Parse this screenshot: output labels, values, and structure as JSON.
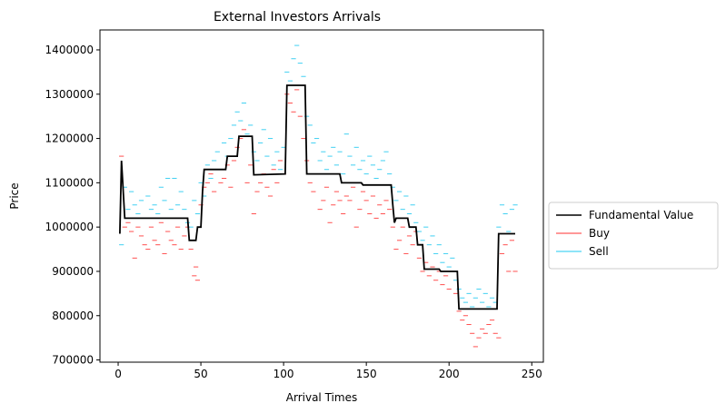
{
  "chart_data": {
    "type": "line",
    "title": "External Investors Arrivals",
    "xlabel": "Arrival Times",
    "ylabel": "Price",
    "xlim": [
      -11,
      257
    ],
    "ylim": [
      695000,
      1445000
    ],
    "xticks": [
      0,
      50,
      100,
      150,
      200,
      250
    ],
    "yticks": [
      700000,
      800000,
      900000,
      1000000,
      1100000,
      1200000,
      1300000,
      1400000
    ],
    "grid": false,
    "legend_position": "outside-right",
    "colors": {
      "fundamental": "#000000",
      "buy": "#ff3030",
      "sell": "#1ec8f0"
    },
    "fundamental_value": {
      "name": "Fundamental Value",
      "x": [
        1,
        2,
        4,
        42,
        43,
        47,
        48,
        50,
        51,
        52,
        65,
        66,
        72,
        73,
        81,
        82,
        101,
        102,
        113,
        114,
        134,
        135,
        147,
        148,
        165,
        166,
        167,
        168,
        175,
        176,
        180,
        181,
        184,
        185,
        194,
        195,
        205,
        206,
        229,
        230,
        240
      ],
      "y": [
        985000,
        1150000,
        1020000,
        1020000,
        970000,
        970000,
        1000000,
        1000000,
        1080000,
        1130000,
        1130000,
        1160000,
        1160000,
        1205000,
        1205000,
        1118000,
        1120000,
        1320000,
        1320000,
        1120000,
        1120000,
        1100000,
        1100000,
        1095000,
        1095000,
        1050000,
        1010000,
        1020000,
        1020000,
        1000000,
        1000000,
        960000,
        960000,
        905000,
        905000,
        900000,
        900000,
        815000,
        815000,
        985000,
        985000
      ]
    },
    "buy_orders": {
      "name": "Buy",
      "points": [
        [
          2,
          1160000
        ],
        [
          4,
          1000000
        ],
        [
          6,
          1010000
        ],
        [
          8,
          990000
        ],
        [
          10,
          930000
        ],
        [
          12,
          1000000
        ],
        [
          14,
          980000
        ],
        [
          16,
          960000
        ],
        [
          18,
          950000
        ],
        [
          20,
          1000000
        ],
        [
          22,
          970000
        ],
        [
          24,
          960000
        ],
        [
          26,
          1010000
        ],
        [
          28,
          940000
        ],
        [
          30,
          990000
        ],
        [
          32,
          970000
        ],
        [
          34,
          960000
        ],
        [
          36,
          1000000
        ],
        [
          38,
          950000
        ],
        [
          40,
          980000
        ],
        [
          42,
          1000000
        ],
        [
          44,
          950000
        ],
        [
          46,
          890000
        ],
        [
          47,
          910000
        ],
        [
          48,
          880000
        ],
        [
          50,
          1050000
        ],
        [
          52,
          1090000
        ],
        [
          54,
          1100000
        ],
        [
          56,
          1120000
        ],
        [
          58,
          1080000
        ],
        [
          60,
          1130000
        ],
        [
          62,
          1100000
        ],
        [
          64,
          1110000
        ],
        [
          66,
          1140000
        ],
        [
          68,
          1090000
        ],
        [
          70,
          1150000
        ],
        [
          72,
          1180000
        ],
        [
          74,
          1200000
        ],
        [
          76,
          1220000
        ],
        [
          78,
          1100000
        ],
        [
          80,
          1140000
        ],
        [
          82,
          1030000
        ],
        [
          84,
          1080000
        ],
        [
          86,
          1100000
        ],
        [
          88,
          1120000
        ],
        [
          90,
          1090000
        ],
        [
          92,
          1070000
        ],
        [
          94,
          1130000
        ],
        [
          96,
          1100000
        ],
        [
          98,
          1150000
        ],
        [
          100,
          1120000
        ],
        [
          102,
          1300000
        ],
        [
          104,
          1280000
        ],
        [
          106,
          1260000
        ],
        [
          108,
          1310000
        ],
        [
          110,
          1250000
        ],
        [
          112,
          1200000
        ],
        [
          114,
          1150000
        ],
        [
          116,
          1100000
        ],
        [
          118,
          1080000
        ],
        [
          120,
          1120000
        ],
        [
          122,
          1040000
        ],
        [
          124,
          1060000
        ],
        [
          126,
          1090000
        ],
        [
          128,
          1010000
        ],
        [
          130,
          1050000
        ],
        [
          132,
          1080000
        ],
        [
          134,
          1060000
        ],
        [
          136,
          1030000
        ],
        [
          138,
          1070000
        ],
        [
          140,
          1060000
        ],
        [
          142,
          1090000
        ],
        [
          144,
          1000000
        ],
        [
          146,
          1040000
        ],
        [
          148,
          1080000
        ],
        [
          150,
          1060000
        ],
        [
          152,
          1030000
        ],
        [
          154,
          1070000
        ],
        [
          156,
          1020000
        ],
        [
          158,
          1050000
        ],
        [
          160,
          1030000
        ],
        [
          162,
          1060000
        ],
        [
          164,
          1040000
        ],
        [
          166,
          1000000
        ],
        [
          168,
          950000
        ],
        [
          170,
          970000
        ],
        [
          172,
          1000000
        ],
        [
          174,
          940000
        ],
        [
          176,
          980000
        ],
        [
          178,
          960000
        ],
        [
          180,
          990000
        ],
        [
          182,
          930000
        ],
        [
          184,
          900000
        ],
        [
          186,
          920000
        ],
        [
          188,
          890000
        ],
        [
          190,
          910000
        ],
        [
          192,
          880000
        ],
        [
          194,
          900000
        ],
        [
          196,
          870000
        ],
        [
          198,
          890000
        ],
        [
          200,
          860000
        ],
        [
          202,
          900000
        ],
        [
          204,
          850000
        ],
        [
          206,
          810000
        ],
        [
          208,
          790000
        ],
        [
          210,
          800000
        ],
        [
          212,
          780000
        ],
        [
          214,
          760000
        ],
        [
          216,
          730000
        ],
        [
          218,
          750000
        ],
        [
          220,
          770000
        ],
        [
          222,
          760000
        ],
        [
          224,
          780000
        ],
        [
          226,
          790000
        ],
        [
          228,
          760000
        ],
        [
          230,
          750000
        ],
        [
          232,
          940000
        ],
        [
          234,
          960000
        ],
        [
          236,
          900000
        ],
        [
          238,
          970000
        ],
        [
          240,
          900000
        ]
      ]
    },
    "sell_orders": {
      "name": "Sell",
      "points": [
        [
          2,
          960000
        ],
        [
          4,
          1090000
        ],
        [
          6,
          1040000
        ],
        [
          8,
          1080000
        ],
        [
          10,
          1050000
        ],
        [
          12,
          1030000
        ],
        [
          14,
          1060000
        ],
        [
          16,
          1020000
        ],
        [
          18,
          1070000
        ],
        [
          20,
          1040000
        ],
        [
          22,
          1050000
        ],
        [
          24,
          1030000
        ],
        [
          26,
          1090000
        ],
        [
          28,
          1060000
        ],
        [
          30,
          1110000
        ],
        [
          32,
          1040000
        ],
        [
          34,
          1110000
        ],
        [
          36,
          1050000
        ],
        [
          38,
          1080000
        ],
        [
          40,
          1040000
        ],
        [
          42,
          1010000
        ],
        [
          44,
          1000000
        ],
        [
          46,
          1060000
        ],
        [
          48,
          1030000
        ],
        [
          50,
          1100000
        ],
        [
          52,
          1070000
        ],
        [
          54,
          1140000
        ],
        [
          56,
          1110000
        ],
        [
          58,
          1150000
        ],
        [
          60,
          1170000
        ],
        [
          62,
          1130000
        ],
        [
          64,
          1190000
        ],
        [
          66,
          1160000
        ],
        [
          68,
          1200000
        ],
        [
          70,
          1230000
        ],
        [
          72,
          1260000
        ],
        [
          74,
          1240000
        ],
        [
          76,
          1280000
        ],
        [
          78,
          1210000
        ],
        [
          80,
          1230000
        ],
        [
          82,
          1170000
        ],
        [
          84,
          1150000
        ],
        [
          86,
          1190000
        ],
        [
          88,
          1220000
        ],
        [
          90,
          1160000
        ],
        [
          92,
          1200000
        ],
        [
          94,
          1140000
        ],
        [
          96,
          1170000
        ],
        [
          98,
          1130000
        ],
        [
          100,
          1180000
        ],
        [
          102,
          1350000
        ],
        [
          104,
          1330000
        ],
        [
          106,
          1380000
        ],
        [
          108,
          1410000
        ],
        [
          110,
          1370000
        ],
        [
          112,
          1340000
        ],
        [
          114,
          1250000
        ],
        [
          116,
          1230000
        ],
        [
          118,
          1190000
        ],
        [
          120,
          1200000
        ],
        [
          122,
          1150000
        ],
        [
          124,
          1170000
        ],
        [
          126,
          1130000
        ],
        [
          128,
          1160000
        ],
        [
          130,
          1180000
        ],
        [
          132,
          1140000
        ],
        [
          134,
          1170000
        ],
        [
          136,
          1120000
        ],
        [
          138,
          1210000
        ],
        [
          140,
          1160000
        ],
        [
          142,
          1140000
        ],
        [
          144,
          1180000
        ],
        [
          146,
          1130000
        ],
        [
          148,
          1150000
        ],
        [
          150,
          1120000
        ],
        [
          152,
          1160000
        ],
        [
          154,
          1140000
        ],
        [
          156,
          1110000
        ],
        [
          158,
          1130000
        ],
        [
          160,
          1150000
        ],
        [
          162,
          1170000
        ],
        [
          164,
          1120000
        ],
        [
          166,
          1090000
        ],
        [
          168,
          1060000
        ],
        [
          170,
          1080000
        ],
        [
          172,
          1040000
        ],
        [
          174,
          1070000
        ],
        [
          176,
          1030000
        ],
        [
          178,
          1050000
        ],
        [
          180,
          1010000
        ],
        [
          182,
          990000
        ],
        [
          184,
          970000
        ],
        [
          186,
          1000000
        ],
        [
          188,
          960000
        ],
        [
          190,
          980000
        ],
        [
          192,
          940000
        ],
        [
          194,
          960000
        ],
        [
          196,
          920000
        ],
        [
          198,
          940000
        ],
        [
          200,
          910000
        ],
        [
          202,
          930000
        ],
        [
          204,
          880000
        ],
        [
          206,
          860000
        ],
        [
          208,
          840000
        ],
        [
          210,
          830000
        ],
        [
          212,
          850000
        ],
        [
          214,
          820000
        ],
        [
          216,
          840000
        ],
        [
          218,
          860000
        ],
        [
          220,
          830000
        ],
        [
          222,
          850000
        ],
        [
          224,
          820000
        ],
        [
          226,
          840000
        ],
        [
          228,
          830000
        ],
        [
          230,
          1000000
        ],
        [
          232,
          1050000
        ],
        [
          234,
          1030000
        ],
        [
          236,
          990000
        ],
        [
          238,
          1040000
        ],
        [
          240,
          1050000
        ]
      ]
    }
  }
}
